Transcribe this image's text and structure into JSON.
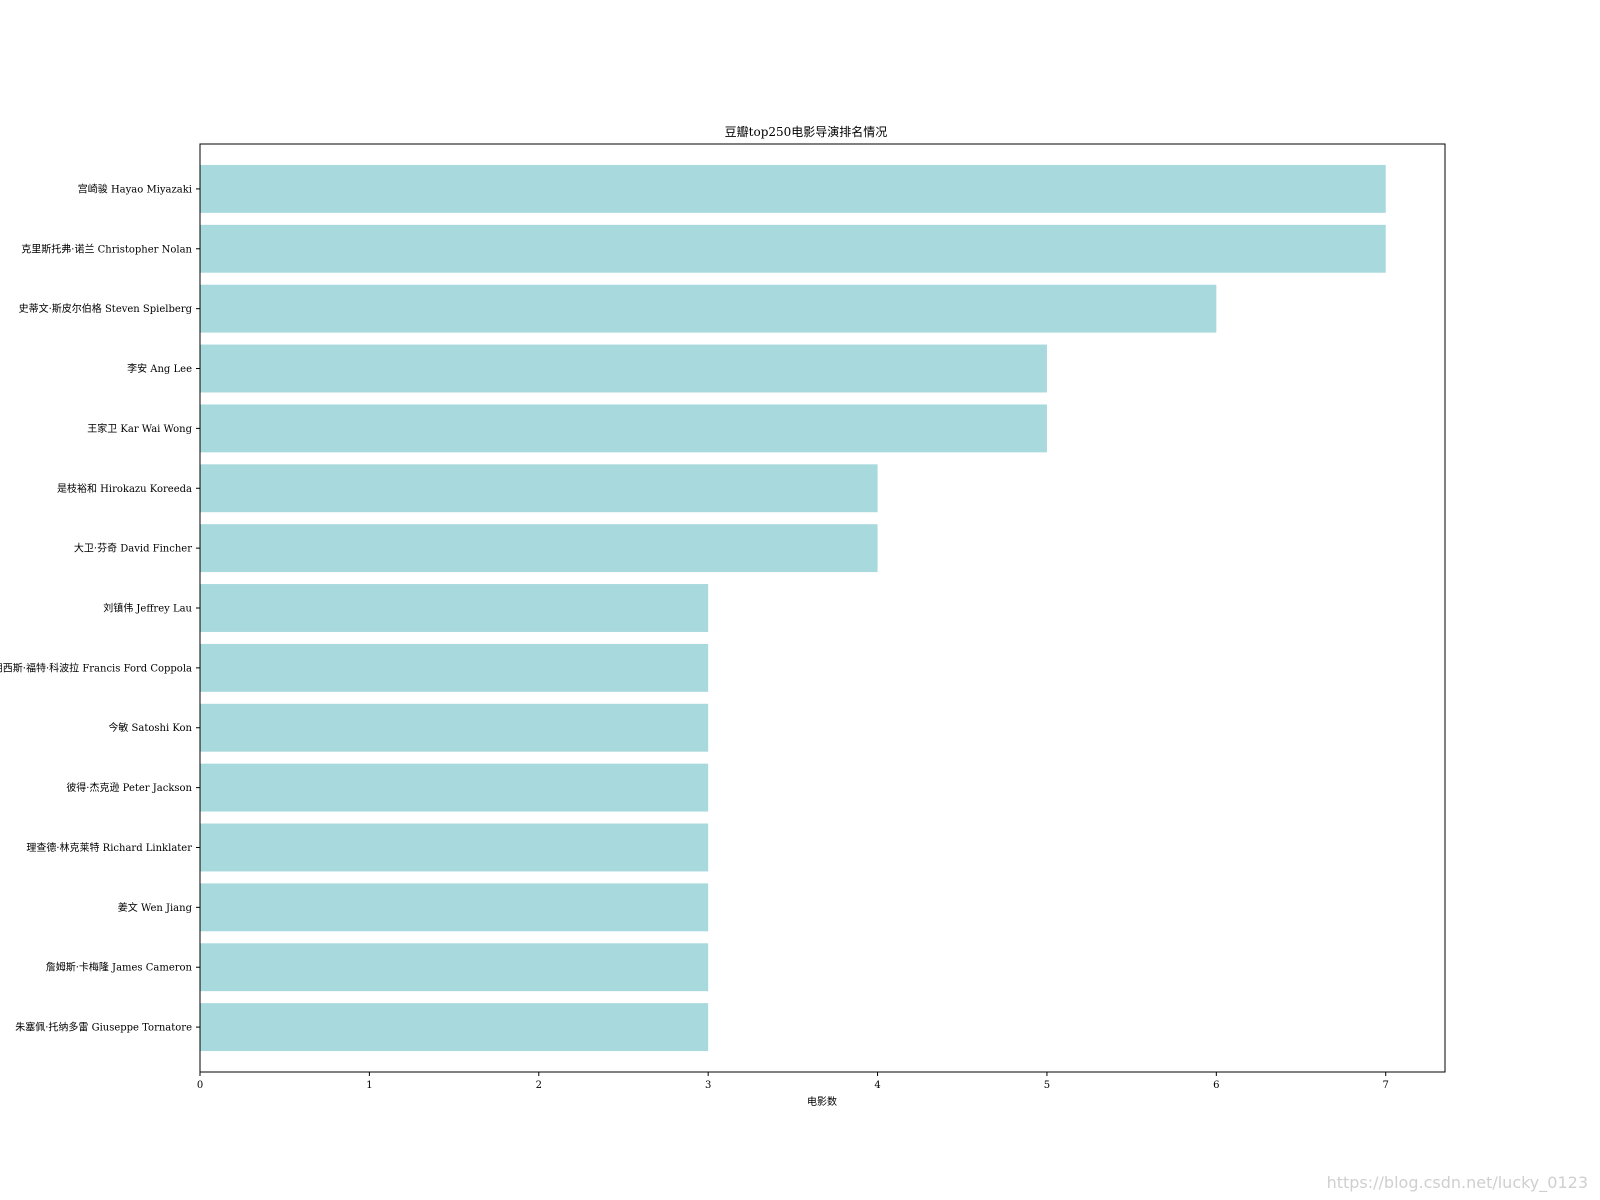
{
  "chart_data": {
    "type": "bar",
    "orientation": "horizontal",
    "title": "豆瓣top250电影导演排名情况",
    "xlabel": "电影数",
    "ylabel": "",
    "categories": [
      "宫崎骏 Hayao Miyazaki",
      "克里斯托弗·诺兰 Christopher Nolan",
      "史蒂文·斯皮尔伯格 Steven Spielberg",
      "李安 Ang Lee",
      "王家卫 Kar Wai Wong",
      "是枝裕和 Hirokazu Koreeda",
      "大卫·芬奇 David Fincher",
      "刘镇伟 Jeffrey Lau",
      "弗朗西斯·福特·科波拉 Francis Ford Coppola",
      "今敏 Satoshi Kon",
      "彼得·杰克逊 Peter Jackson",
      "理查德·林克莱特 Richard Linklater",
      "姜文 Wen Jiang",
      "詹姆斯·卡梅隆 James Cameron",
      "朱塞佩·托纳多雷 Giuseppe Tornatore"
    ],
    "values": [
      7,
      7,
      6,
      5,
      5,
      4,
      4,
      3,
      3,
      3,
      3,
      3,
      3,
      3,
      3
    ],
    "xlim": [
      0,
      7.35
    ],
    "xticks": [
      0,
      1,
      2,
      3,
      4,
      5,
      6,
      7
    ],
    "grid": false,
    "bar_color": "#a8d9dc",
    "watermark": "https://blog.csdn.net/lucky_0123"
  }
}
